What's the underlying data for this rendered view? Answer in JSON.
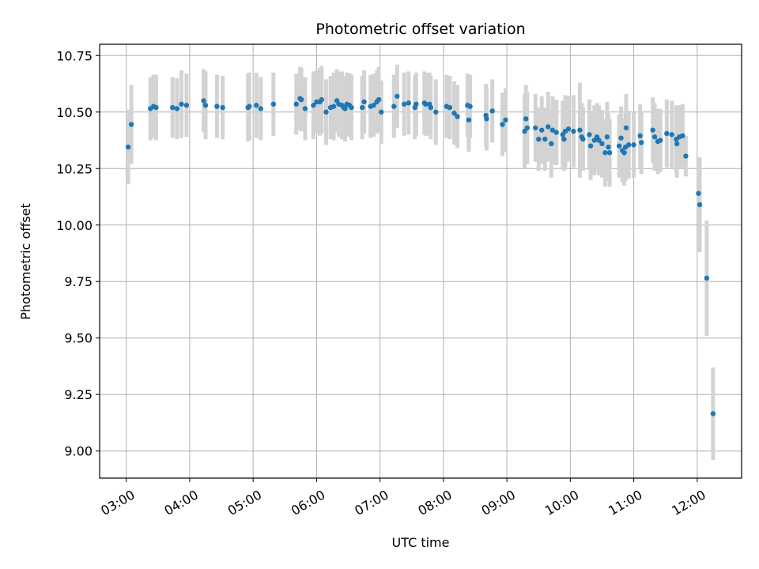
{
  "colors": {
    "point": "#1f77b4",
    "errorbar": "#d3d3d3",
    "grid": "#b0b0b0",
    "axis": "#000000"
  },
  "chart_data": {
    "type": "scatter",
    "title": "Photometric offset variation",
    "xlabel": "UTC time",
    "ylabel": "Photometric offset",
    "x_unit": "hours UTC",
    "xlim": [
      2.58,
      12.7
    ],
    "ylim": [
      8.88,
      10.8
    ],
    "grid": true,
    "x_ticks": [
      {
        "value": 3,
        "label": "03:00"
      },
      {
        "value": 4,
        "label": "04:00"
      },
      {
        "value": 5,
        "label": "05:00"
      },
      {
        "value": 6,
        "label": "06:00"
      },
      {
        "value": 7,
        "label": "07:00"
      },
      {
        "value": 8,
        "label": "08:00"
      },
      {
        "value": 9,
        "label": "09:00"
      },
      {
        "value": 10,
        "label": "10:00"
      },
      {
        "value": 11,
        "label": "11:00"
      },
      {
        "value": 12,
        "label": "12:00"
      }
    ],
    "y_ticks": [
      {
        "value": 9.0,
        "label": "9.00"
      },
      {
        "value": 9.25,
        "label": "9.25"
      },
      {
        "value": 9.5,
        "label": "9.50"
      },
      {
        "value": 9.75,
        "label": "9.75"
      },
      {
        "value": 10.0,
        "label": "10.00"
      },
      {
        "value": 10.25,
        "label": "10.25"
      },
      {
        "value": 10.5,
        "label": "10.50"
      },
      {
        "value": 10.75,
        "label": "10.75"
      }
    ],
    "series": [
      {
        "points": [
          {
            "x": 3.03,
            "y": 10.345,
            "err": 0.165
          },
          {
            "x": 3.08,
            "y": 10.445,
            "err": 0.175
          },
          {
            "x": 3.38,
            "y": 10.515,
            "err": 0.14
          },
          {
            "x": 3.43,
            "y": 10.525,
            "err": 0.14
          },
          {
            "x": 3.47,
            "y": 10.52,
            "err": 0.145
          },
          {
            "x": 3.73,
            "y": 10.52,
            "err": 0.135
          },
          {
            "x": 3.8,
            "y": 10.515,
            "err": 0.135
          },
          {
            "x": 3.87,
            "y": 10.535,
            "err": 0.15
          },
          {
            "x": 3.95,
            "y": 10.53,
            "err": 0.14
          },
          {
            "x": 4.22,
            "y": 10.55,
            "err": 0.14
          },
          {
            "x": 4.25,
            "y": 10.53,
            "err": 0.15
          },
          {
            "x": 4.43,
            "y": 10.525,
            "err": 0.14
          },
          {
            "x": 4.52,
            "y": 10.52,
            "err": 0.14
          },
          {
            "x": 4.92,
            "y": 10.52,
            "err": 0.15
          },
          {
            "x": 4.94,
            "y": 10.525,
            "err": 0.15
          },
          {
            "x": 5.05,
            "y": 10.53,
            "err": 0.145
          },
          {
            "x": 5.12,
            "y": 10.515,
            "err": 0.14
          },
          {
            "x": 5.32,
            "y": 10.535,
            "err": 0.14
          },
          {
            "x": 5.68,
            "y": 10.535,
            "err": 0.135
          },
          {
            "x": 5.74,
            "y": 10.56,
            "err": 0.14
          },
          {
            "x": 5.76,
            "y": 10.555,
            "err": 0.14
          },
          {
            "x": 5.82,
            "y": 10.515,
            "err": 0.14
          },
          {
            "x": 5.95,
            "y": 10.53,
            "err": 0.15
          },
          {
            "x": 6.0,
            "y": 10.545,
            "err": 0.14
          },
          {
            "x": 6.05,
            "y": 10.545,
            "err": 0.15
          },
          {
            "x": 6.08,
            "y": 10.555,
            "err": 0.15
          },
          {
            "x": 6.15,
            "y": 10.5,
            "err": 0.145
          },
          {
            "x": 6.22,
            "y": 10.52,
            "err": 0.14
          },
          {
            "x": 6.27,
            "y": 10.525,
            "err": 0.15
          },
          {
            "x": 6.32,
            "y": 10.55,
            "err": 0.14
          },
          {
            "x": 6.35,
            "y": 10.535,
            "err": 0.145
          },
          {
            "x": 6.4,
            "y": 10.53,
            "err": 0.15
          },
          {
            "x": 6.43,
            "y": 10.52,
            "err": 0.14
          },
          {
            "x": 6.45,
            "y": 10.515,
            "err": 0.145
          },
          {
            "x": 6.48,
            "y": 10.535,
            "err": 0.14
          },
          {
            "x": 6.52,
            "y": 10.53,
            "err": 0.14
          },
          {
            "x": 6.55,
            "y": 10.52,
            "err": 0.145
          },
          {
            "x": 6.72,
            "y": 10.52,
            "err": 0.14
          },
          {
            "x": 6.75,
            "y": 10.545,
            "err": 0.14
          },
          {
            "x": 6.85,
            "y": 10.525,
            "err": 0.14
          },
          {
            "x": 6.9,
            "y": 10.53,
            "err": 0.14
          },
          {
            "x": 6.95,
            "y": 10.545,
            "err": 0.14
          },
          {
            "x": 6.98,
            "y": 10.555,
            "err": 0.145
          },
          {
            "x": 7.02,
            "y": 10.5,
            "err": 0.14
          },
          {
            "x": 7.22,
            "y": 10.525,
            "err": 0.14
          },
          {
            "x": 7.27,
            "y": 10.57,
            "err": 0.14
          },
          {
            "x": 7.38,
            "y": 10.535,
            "err": 0.14
          },
          {
            "x": 7.45,
            "y": 10.54,
            "err": 0.14
          },
          {
            "x": 7.55,
            "y": 10.52,
            "err": 0.14
          },
          {
            "x": 7.57,
            "y": 10.535,
            "err": 0.14
          },
          {
            "x": 7.7,
            "y": 10.54,
            "err": 0.14
          },
          {
            "x": 7.72,
            "y": 10.535,
            "err": 0.14
          },
          {
            "x": 7.78,
            "y": 10.535,
            "err": 0.14
          },
          {
            "x": 7.8,
            "y": 10.52,
            "err": 0.14
          },
          {
            "x": 7.88,
            "y": 10.5,
            "err": 0.145
          },
          {
            "x": 8.05,
            "y": 10.525,
            "err": 0.14
          },
          {
            "x": 8.1,
            "y": 10.52,
            "err": 0.14
          },
          {
            "x": 8.17,
            "y": 10.495,
            "err": 0.14
          },
          {
            "x": 8.22,
            "y": 10.48,
            "err": 0.14
          },
          {
            "x": 8.38,
            "y": 10.53,
            "err": 0.14
          },
          {
            "x": 8.42,
            "y": 10.525,
            "err": 0.14
          },
          {
            "x": 8.4,
            "y": 10.465,
            "err": 0.14
          },
          {
            "x": 8.67,
            "y": 10.485,
            "err": 0.14
          },
          {
            "x": 8.68,
            "y": 10.47,
            "err": 0.14
          },
          {
            "x": 8.77,
            "y": 10.505,
            "err": 0.14
          },
          {
            "x": 8.93,
            "y": 10.445,
            "err": 0.14
          },
          {
            "x": 8.98,
            "y": 10.465,
            "err": 0.14
          },
          {
            "x": 9.28,
            "y": 10.415,
            "err": 0.165
          },
          {
            "x": 9.3,
            "y": 10.47,
            "err": 0.15
          },
          {
            "x": 9.32,
            "y": 10.43,
            "err": 0.16
          },
          {
            "x": 9.45,
            "y": 10.43,
            "err": 0.15
          },
          {
            "x": 9.5,
            "y": 10.38,
            "err": 0.14
          },
          {
            "x": 9.55,
            "y": 10.42,
            "err": 0.15
          },
          {
            "x": 9.6,
            "y": 10.38,
            "err": 0.14
          },
          {
            "x": 9.65,
            "y": 10.435,
            "err": 0.155
          },
          {
            "x": 9.7,
            "y": 10.36,
            "err": 0.15
          },
          {
            "x": 9.72,
            "y": 10.42,
            "err": 0.15
          },
          {
            "x": 9.78,
            "y": 10.41,
            "err": 0.145
          },
          {
            "x": 9.88,
            "y": 10.4,
            "err": 0.15
          },
          {
            "x": 9.9,
            "y": 10.38,
            "err": 0.14
          },
          {
            "x": 9.92,
            "y": 10.415,
            "err": 0.16
          },
          {
            "x": 9.97,
            "y": 10.425,
            "err": 0.145
          },
          {
            "x": 10.05,
            "y": 10.415,
            "err": 0.16
          },
          {
            "x": 10.15,
            "y": 10.42,
            "err": 0.21
          },
          {
            "x": 10.18,
            "y": 10.39,
            "err": 0.15
          },
          {
            "x": 10.2,
            "y": 10.38,
            "err": 0.14
          },
          {
            "x": 10.3,
            "y": 10.4,
            "err": 0.155
          },
          {
            "x": 10.32,
            "y": 10.35,
            "err": 0.15
          },
          {
            "x": 10.38,
            "y": 10.375,
            "err": 0.155
          },
          {
            "x": 10.42,
            "y": 10.39,
            "err": 0.15
          },
          {
            "x": 10.45,
            "y": 10.375,
            "err": 0.155
          },
          {
            "x": 10.5,
            "y": 10.36,
            "err": 0.15
          },
          {
            "x": 10.55,
            "y": 10.32,
            "err": 0.15
          },
          {
            "x": 10.58,
            "y": 10.39,
            "err": 0.155
          },
          {
            "x": 10.6,
            "y": 10.345,
            "err": 0.15
          },
          {
            "x": 10.62,
            "y": 10.32,
            "err": 0.15
          },
          {
            "x": 10.77,
            "y": 10.35,
            "err": 0.14
          },
          {
            "x": 10.8,
            "y": 10.385,
            "err": 0.14
          },
          {
            "x": 10.82,
            "y": 10.33,
            "err": 0.14
          },
          {
            "x": 10.85,
            "y": 10.32,
            "err": 0.145
          },
          {
            "x": 10.87,
            "y": 10.345,
            "err": 0.15
          },
          {
            "x": 10.88,
            "y": 10.43,
            "err": 0.15
          },
          {
            "x": 10.92,
            "y": 10.355,
            "err": 0.15
          },
          {
            "x": 11.0,
            "y": 10.355,
            "err": 0.145
          },
          {
            "x": 11.1,
            "y": 10.395,
            "err": 0.14
          },
          {
            "x": 11.12,
            "y": 10.365,
            "err": 0.14
          },
          {
            "x": 11.3,
            "y": 10.42,
            "err": 0.145
          },
          {
            "x": 11.33,
            "y": 10.39,
            "err": 0.15
          },
          {
            "x": 11.38,
            "y": 10.37,
            "err": 0.145
          },
          {
            "x": 11.42,
            "y": 10.375,
            "err": 0.14
          },
          {
            "x": 11.52,
            "y": 10.405,
            "err": 0.15
          },
          {
            "x": 11.6,
            "y": 10.4,
            "err": 0.15
          },
          {
            "x": 11.67,
            "y": 10.38,
            "err": 0.15
          },
          {
            "x": 11.68,
            "y": 10.36,
            "err": 0.15
          },
          {
            "x": 11.72,
            "y": 10.39,
            "err": 0.14
          },
          {
            "x": 11.77,
            "y": 10.395,
            "err": 0.14
          },
          {
            "x": 11.82,
            "y": 10.305,
            "err": 0.09
          },
          {
            "x": 12.02,
            "y": 10.14,
            "err": 0.11
          },
          {
            "x": 12.04,
            "y": 10.09,
            "err": 0.21
          },
          {
            "x": 12.15,
            "y": 9.765,
            "err": 0.255
          },
          {
            "x": 12.25,
            "y": 9.165,
            "err": 0.205
          }
        ]
      }
    ]
  }
}
